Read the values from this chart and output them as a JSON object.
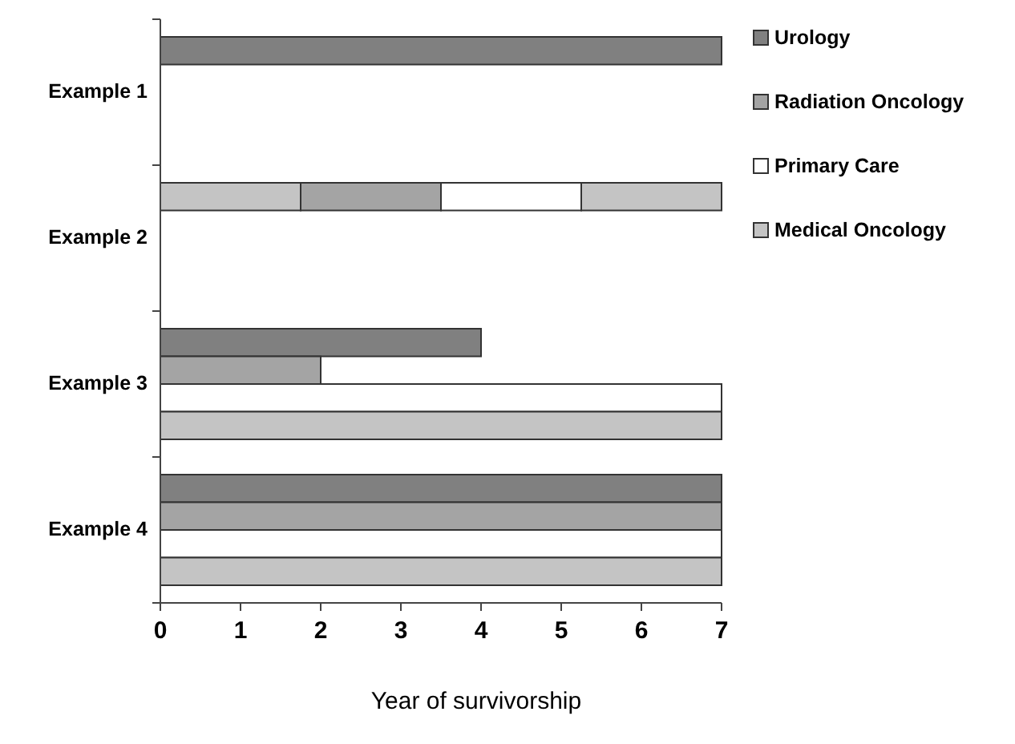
{
  "chart_data": {
    "type": "bar",
    "orientation": "horizontal",
    "xlabel": "Year of survivorship",
    "categories": [
      "Example 1",
      "Example 2",
      "Example 3",
      "Example 4"
    ],
    "series": [
      {
        "name": "Urology",
        "color": "#808080",
        "values": [
          7,
          null,
          4,
          7
        ],
        "base": [
          0,
          null,
          0,
          0
        ]
      },
      {
        "name": "Radiation Oncology",
        "color": "#a4a4a4",
        "values": [
          null,
          1.75,
          2,
          7
        ],
        "base": [
          null,
          1.75,
          0,
          0
        ]
      },
      {
        "name": "Primary Care",
        "color": "#ffffff",
        "values": [
          null,
          1.75,
          7,
          7
        ],
        "base": [
          null,
          3.5,
          0,
          0
        ]
      },
      {
        "name": "Medical Oncology",
        "color": "#c4c4c4",
        "values": [
          null,
          1.75,
          7,
          7
        ],
        "base": [
          null,
          0,
          0,
          0
        ]
      },
      {
        "color": "#c4c4c4",
        "values": [
          null,
          1.75,
          null,
          null
        ],
        "base": [
          null,
          5.25,
          null,
          null
        ]
      }
    ],
    "xlim": [
      0,
      7
    ],
    "xticks": [
      0,
      1,
      2,
      3,
      4,
      5,
      6,
      7
    ],
    "legend": "right",
    "grid": false
  }
}
